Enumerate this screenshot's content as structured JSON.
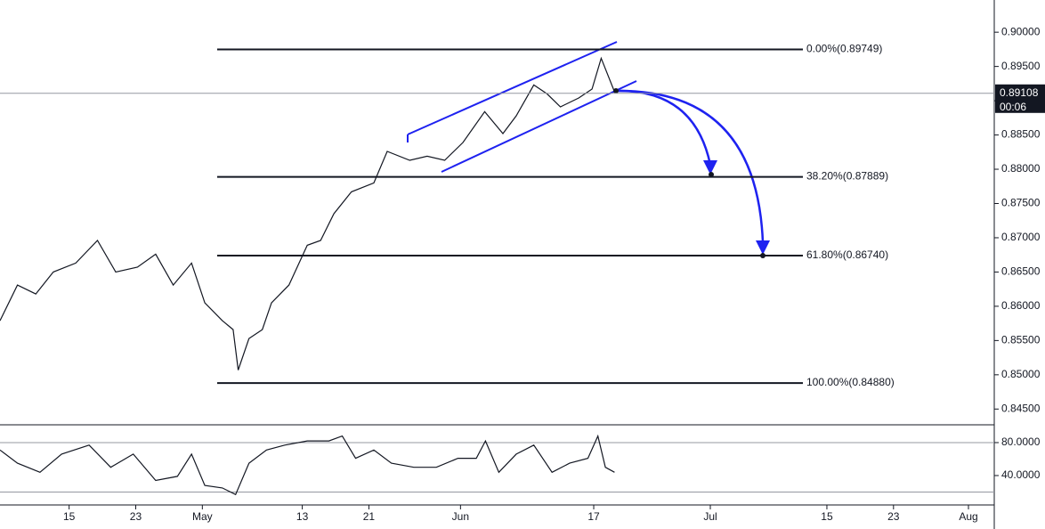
{
  "chart_data": [
    {
      "type": "line",
      "color": "#131722",
      "x": [
        5.7,
        7.8,
        10.0,
        12.1,
        14.8,
        17.4,
        19.6,
        22.2,
        24.4,
        26.5,
        28.7,
        30.3,
        32.4,
        33.7,
        34.3,
        35.6,
        37.2,
        38.3,
        40.4,
        42.6,
        44.2,
        45.8,
        47.9,
        50.6,
        52.2,
        54.9,
        57.0,
        59.1,
        61.3,
        63.9,
        66.1,
        67.7,
        69.8,
        71.4,
        73.0,
        75.2,
        76.8,
        77.9,
        79.5
      ],
      "values": [
        0.8579,
        0.8631,
        0.8618,
        0.865,
        0.8663,
        0.8696,
        0.865,
        0.8657,
        0.8676,
        0.8631,
        0.8663,
        0.8605,
        0.8579,
        0.8566,
        0.8507,
        0.8553,
        0.8566,
        0.8605,
        0.8631,
        0.8689,
        0.8696,
        0.8735,
        0.8767,
        0.878,
        0.8826,
        0.8813,
        0.8819,
        0.8813,
        0.8839,
        0.8884,
        0.8852,
        0.8878,
        0.8923,
        0.891,
        0.8891,
        0.8904,
        0.8917,
        0.8962,
        0.8913
      ],
      "xlim": [
        5.7,
        125.1
      ],
      "xticks": [
        {
          "value": 14,
          "label": "15"
        },
        {
          "value": 22,
          "label": "23"
        },
        {
          "value": 30,
          "label": "May"
        },
        {
          "value": 42,
          "label": "13"
        },
        {
          "value": 50,
          "label": "21"
        },
        {
          "value": 61,
          "label": "Jun"
        },
        {
          "value": 77,
          "label": "17"
        },
        {
          "value": 91,
          "label": "Jul"
        },
        {
          "value": 105,
          "label": "15"
        },
        {
          "value": 113,
          "label": "23"
        },
        {
          "value": 122,
          "label": "Aug"
        }
      ],
      "ylim": [
        0.8427,
        0.9047
      ],
      "yticks": [
        {
          "value": 0.845,
          "label": "0.84500"
        },
        {
          "value": 0.85,
          "label": "0.85000"
        },
        {
          "value": 0.855,
          "label": "0.85500"
        },
        {
          "value": 0.86,
          "label": "0.86000"
        },
        {
          "value": 0.865,
          "label": "0.86500"
        },
        {
          "value": 0.87,
          "label": "0.87000"
        },
        {
          "value": 0.875,
          "label": "0.87500"
        },
        {
          "value": 0.88,
          "label": "0.88000"
        },
        {
          "value": 0.885,
          "label": "0.88500"
        },
        {
          "value": 0.89,
          "label": "0.89000"
        },
        {
          "value": 0.895,
          "label": "0.89500"
        },
        {
          "value": 0.9,
          "label": "0.90000"
        }
      ],
      "fib_levels": [
        {
          "value": 0.89749,
          "label": "0.00%(0.89749)"
        },
        {
          "value": 0.87889,
          "label": "38.20%(0.87889)"
        },
        {
          "value": 0.8674,
          "label": "61.80%(0.86740)"
        },
        {
          "value": 0.8488,
          "label": "100.00%(0.84880)"
        }
      ],
      "last_price": 0.89108,
      "countdown": "00:06"
    },
    {
      "type": "line",
      "color": "#131722",
      "x": [
        5.7,
        7.8,
        10.5,
        13.1,
        16.4,
        19.0,
        21.7,
        24.4,
        27.0,
        28.7,
        30.3,
        32.4,
        34.0,
        35.6,
        37.7,
        39.9,
        42.6,
        45.2,
        46.8,
        48.4,
        50.6,
        52.7,
        55.4,
        58.1,
        60.7,
        62.9,
        64.0,
        65.6,
        67.7,
        69.8,
        72.0,
        74.1,
        76.3,
        77.5,
        78.4,
        79.5
      ],
      "values": [
        71,
        55,
        44,
        66,
        77,
        50,
        66,
        34,
        39,
        66,
        28,
        25,
        17,
        55,
        71,
        77,
        82,
        82,
        88,
        61,
        71,
        55,
        50,
        50,
        61,
        61,
        82,
        44,
        66,
        77,
        44,
        55,
        61,
        88,
        50,
        44
      ],
      "ylim": [
        4.3,
        101.6
      ],
      "yticks": [
        {
          "value": 80,
          "label": "80.0000"
        },
        {
          "value": 40,
          "label": "40.0000"
        }
      ],
      "bands": [
        80,
        20
      ]
    }
  ]
}
